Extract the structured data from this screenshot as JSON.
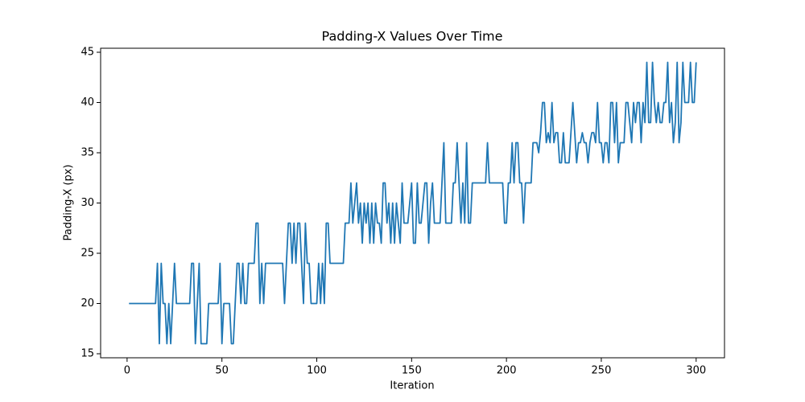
{
  "chart_data": {
    "type": "line",
    "title": "Padding-X Values Over Time",
    "x_label": "Iteration",
    "y_label": "Padding-X (px)",
    "x": [
      1,
      2,
      3,
      4,
      5,
      6,
      7,
      8,
      9,
      10,
      11,
      12,
      13,
      14,
      15,
      16,
      17,
      18,
      19,
      20,
      21,
      22,
      23,
      24,
      25,
      26,
      27,
      28,
      29,
      30,
      31,
      32,
      33,
      34,
      35,
      36,
      37,
      38,
      39,
      40,
      41,
      42,
      43,
      44,
      45,
      46,
      47,
      48,
      49,
      50,
      51,
      52,
      53,
      54,
      55,
      56,
      57,
      58,
      59,
      60,
      61,
      62,
      63,
      64,
      65,
      66,
      67,
      68,
      69,
      70,
      71,
      72,
      73,
      74,
      75,
      76,
      77,
      78,
      79,
      80,
      81,
      82,
      83,
      84,
      85,
      86,
      87,
      88,
      89,
      90,
      91,
      92,
      93,
      94,
      95,
      96,
      97,
      98,
      99,
      100,
      101,
      102,
      103,
      104,
      105,
      106,
      107,
      108,
      109,
      110,
      111,
      112,
      113,
      114,
      115,
      116,
      117,
      118,
      119,
      120,
      121,
      122,
      123,
      124,
      125,
      126,
      127,
      128,
      129,
      130,
      131,
      132,
      133,
      134,
      135,
      136,
      137,
      138,
      139,
      140,
      141,
      142,
      143,
      144,
      145,
      146,
      147,
      148,
      149,
      150,
      151,
      152,
      153,
      154,
      155,
      156,
      157,
      158,
      159,
      160,
      161,
      162,
      163,
      164,
      165,
      166,
      167,
      168,
      169,
      170,
      171,
      172,
      173,
      174,
      175,
      176,
      177,
      178,
      179,
      180,
      181,
      182,
      183,
      184,
      185,
      186,
      187,
      188,
      189,
      190,
      191,
      192,
      193,
      194,
      195,
      196,
      197,
      198,
      199,
      200,
      201,
      202,
      203,
      204,
      205,
      206,
      207,
      208,
      209,
      210,
      211,
      212,
      213,
      214,
      215,
      216,
      217,
      218,
      219,
      220,
      221,
      222,
      223,
      224,
      225,
      226,
      227,
      228,
      229,
      230,
      231,
      232,
      233,
      234,
      235,
      236,
      237,
      238,
      239,
      240,
      241,
      242,
      243,
      244,
      245,
      246,
      247,
      248,
      249,
      250,
      251,
      252,
      253,
      254,
      255,
      256,
      257,
      258,
      259,
      260,
      261,
      262,
      263,
      264,
      265,
      266,
      267,
      268,
      269,
      270,
      271,
      272,
      273,
      274,
      275,
      276,
      277,
      278,
      279,
      280,
      281,
      282,
      283,
      284,
      285,
      286,
      287,
      288,
      289,
      290,
      291,
      292,
      293,
      294,
      295,
      296,
      297,
      298,
      299,
      300
    ],
    "series": [
      {
        "name": "Padding-X",
        "color": "#1f77b4",
        "values": [
          20,
          20,
          20,
          20,
          20,
          20,
          20,
          20,
          20,
          20,
          20,
          20,
          20,
          20,
          20,
          24,
          16,
          24,
          20,
          20,
          16,
          20,
          16,
          20,
          24,
          20,
          20,
          20,
          20,
          20,
          20,
          20,
          20,
          24,
          24,
          16,
          20,
          24,
          16,
          16,
          16,
          16,
          20,
          20,
          20,
          20,
          20,
          20,
          24,
          16,
          20,
          20,
          20,
          20,
          16,
          16,
          20,
          24,
          24,
          20,
          24,
          20,
          20,
          24,
          24,
          24,
          24,
          28,
          28,
          20,
          24,
          20,
          24,
          24,
          24,
          24,
          24,
          24,
          24,
          24,
          24,
          24,
          20,
          24,
          28,
          28,
          24,
          28,
          24,
          28,
          28,
          24,
          20,
          28,
          24,
          24,
          20,
          20,
          20,
          20,
          24,
          20,
          24,
          20,
          28,
          28,
          24,
          24,
          24,
          24,
          24,
          24,
          24,
          24,
          28,
          28,
          28,
          32,
          28,
          30,
          32,
          28,
          30,
          26,
          30,
          28,
          30,
          26,
          30,
          26,
          30,
          28,
          28,
          26,
          32,
          32,
          28,
          30,
          26,
          30,
          26,
          30,
          28,
          26,
          32,
          28,
          28,
          28,
          30,
          32,
          26,
          26,
          32,
          28,
          28,
          30,
          32,
          32,
          26,
          30,
          32,
          28,
          28,
          28,
          28,
          32,
          36,
          28,
          28,
          28,
          28,
          32,
          32,
          36,
          32,
          28,
          32,
          28,
          36,
          28,
          28,
          32,
          32,
          32,
          32,
          32,
          32,
          32,
          32,
          36,
          32,
          32,
          32,
          32,
          32,
          32,
          32,
          32,
          28,
          28,
          32,
          32,
          36,
          32,
          36,
          36,
          32,
          32,
          28,
          32,
          32,
          32,
          32,
          36,
          36,
          36,
          35,
          37,
          40,
          40,
          36,
          37,
          36,
          40,
          36,
          37,
          37,
          34,
          34,
          37,
          34,
          34,
          34,
          37,
          40,
          37,
          34,
          36,
          36,
          37,
          36,
          36,
          34,
          36,
          37,
          37,
          36,
          40,
          36,
          36,
          34,
          36,
          36,
          34,
          40,
          40,
          36,
          40,
          34,
          36,
          36,
          36,
          40,
          40,
          38,
          36,
          40,
          38,
          40,
          40,
          36,
          40,
          38,
          44,
          38,
          38,
          44,
          40,
          38,
          40,
          38,
          38,
          40,
          40,
          44,
          38,
          40,
          36,
          38,
          44,
          36,
          38,
          44,
          40,
          40,
          40,
          44,
          40,
          40,
          44
        ]
      }
    ],
    "xlim": [
      -13.95,
      314.95
    ],
    "xticks": [
      0,
      50,
      100,
      150,
      200,
      250,
      300
    ],
    "ylim": [
      14.6,
      45.4
    ],
    "yticks": [
      15,
      20,
      25,
      30,
      35,
      40,
      45
    ],
    "grid": false
  }
}
